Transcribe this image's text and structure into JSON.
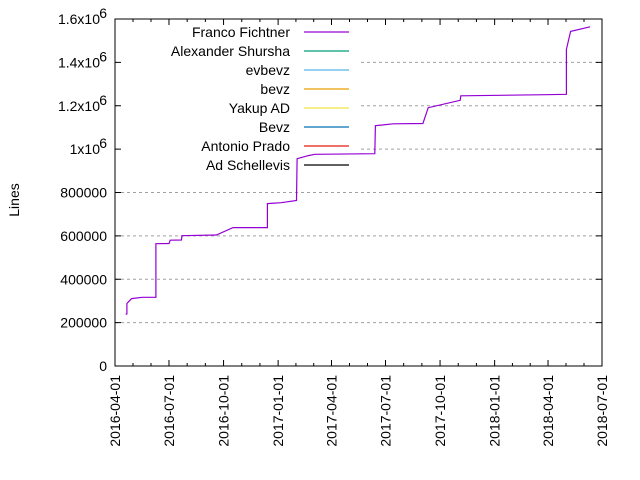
{
  "chart_data": {
    "type": "line",
    "title": "",
    "xlabel": "",
    "ylabel": "Lines",
    "x_type": "date",
    "xlim": [
      "2016-04-01",
      "2018-07-01"
    ],
    "ylim": [
      0,
      1600000
    ],
    "grid": true,
    "legend_placement": "top-left",
    "x_ticks": [
      "2016-04-01",
      "2016-07-01",
      "2016-10-01",
      "2017-01-01",
      "2017-04-01",
      "2017-07-01",
      "2017-10-01",
      "2018-01-01",
      "2018-04-01",
      "2018-07-01"
    ],
    "y_ticks": [
      {
        "value": 0,
        "label": "0"
      },
      {
        "value": 200000,
        "label": "200000"
      },
      {
        "value": 400000,
        "label": "400000"
      },
      {
        "value": 600000,
        "label": "600000"
      },
      {
        "value": 800000,
        "label": "800000"
      },
      {
        "value": 1000000,
        "label": "1x10",
        "exp": "6"
      },
      {
        "value": 1200000,
        "label": "1.2x10",
        "exp": "6"
      },
      {
        "value": 1400000,
        "label": "1.4x10",
        "exp": "6"
      },
      {
        "value": 1600000,
        "label": "1.6x10",
        "exp": "6"
      }
    ],
    "series": [
      {
        "name": "Franco Fichtner",
        "color": "#9400d3",
        "points": [
          [
            "2016-04-19",
            238000
          ],
          [
            "2016-04-21",
            240000
          ],
          [
            "2016-04-21",
            288000
          ],
          [
            "2016-04-29",
            311000
          ],
          [
            "2016-05-17",
            317000
          ],
          [
            "2016-06-09",
            317000
          ],
          [
            "2016-06-09",
            564000
          ],
          [
            "2016-07-01",
            565000
          ],
          [
            "2016-07-03",
            580000
          ],
          [
            "2016-07-22",
            581000
          ],
          [
            "2016-07-23",
            601000
          ],
          [
            "2016-09-19",
            604000
          ],
          [
            "2016-10-17",
            638000
          ],
          [
            "2016-12-14",
            638000
          ],
          [
            "2016-12-14",
            749000
          ],
          [
            "2017-01-06",
            753000
          ],
          [
            "2017-02-01",
            763000
          ],
          [
            "2017-02-02",
            956000
          ],
          [
            "2017-02-21",
            970000
          ],
          [
            "2017-03-04",
            976000
          ],
          [
            "2017-06-13",
            979000
          ],
          [
            "2017-06-14",
            1108000
          ],
          [
            "2017-07-14",
            1117000
          ],
          [
            "2017-09-02",
            1118000
          ],
          [
            "2017-09-11",
            1191000
          ],
          [
            "2017-11-04",
            1225000
          ],
          [
            "2017-11-05",
            1246000
          ],
          [
            "2018-03-29",
            1251000
          ],
          [
            "2018-05-02",
            1253000
          ],
          [
            "2018-05-02",
            1460000
          ],
          [
            "2018-05-09",
            1543000
          ],
          [
            "2018-06-11",
            1564000
          ]
        ]
      },
      {
        "name": "Alexander Shursha",
        "color": "#009e73",
        "points": []
      },
      {
        "name": "evbevz",
        "color": "#56b4e9",
        "points": []
      },
      {
        "name": "bevz",
        "color": "#e69f00",
        "points": []
      },
      {
        "name": "Yakup AD",
        "color": "#f0e442",
        "points": []
      },
      {
        "name": "Bevz",
        "color": "#0072b2",
        "points": []
      },
      {
        "name": "Antonio Prado",
        "color": "#e51e10",
        "points": []
      },
      {
        "name": "Ad Schellevis",
        "color": "#000000",
        "points": []
      }
    ]
  }
}
